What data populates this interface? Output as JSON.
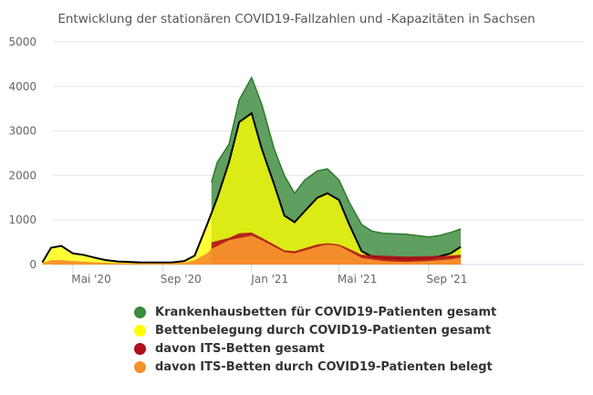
{
  "chart_data": {
    "type": "area",
    "title": "Entwicklung der stationären COVID19-Fallzahlen und -Kapazitäten in Sachsen",
    "xlabel": "",
    "ylabel": "",
    "ylim": [
      0,
      5000
    ],
    "yticks": [
      "0",
      "1000",
      "2000",
      "3000",
      "4000",
      "5000"
    ],
    "xticks": [
      {
        "date": "2020-05-01",
        "label": "Mai '20"
      },
      {
        "date": "2020-09-01",
        "label": "Sep '20"
      },
      {
        "date": "2021-01-01",
        "label": "Jan '21"
      },
      {
        "date": "2021-05-01",
        "label": "Mai '21"
      },
      {
        "date": "2021-09-01",
        "label": "Sep '21"
      }
    ],
    "grid": true,
    "legend_position": "bottom",
    "series": [
      {
        "name": "Krankenhausbetten für COVID19-Patienten gesamt",
        "color": "#3c8a3c",
        "points": [
          [
            "2020-11-07",
            1850
          ],
          [
            "2020-11-15",
            2300
          ],
          [
            "2020-12-01",
            2700
          ],
          [
            "2020-12-15",
            3700
          ],
          [
            "2021-01-01",
            4200
          ],
          [
            "2021-01-15",
            3600
          ],
          [
            "2021-02-01",
            2600
          ],
          [
            "2021-02-15",
            2000
          ],
          [
            "2021-03-01",
            1600
          ],
          [
            "2021-03-15",
            1900
          ],
          [
            "2021-04-01",
            2100
          ],
          [
            "2021-04-15",
            2150
          ],
          [
            "2021-05-01",
            1900
          ],
          [
            "2021-05-15",
            1400
          ],
          [
            "2021-06-01",
            900
          ],
          [
            "2021-06-15",
            750
          ],
          [
            "2021-07-01",
            700
          ],
          [
            "2021-08-01",
            680
          ],
          [
            "2021-09-01",
            620
          ],
          [
            "2021-09-15",
            650
          ],
          [
            "2021-10-01",
            720
          ],
          [
            "2021-10-15",
            800
          ]
        ]
      },
      {
        "name": "Bettenbelegung durch COVID19-Patienten gesamt",
        "color": "#ffff00",
        "points": [
          [
            "2020-03-20",
            50
          ],
          [
            "2020-04-01",
            380
          ],
          [
            "2020-04-15",
            420
          ],
          [
            "2020-05-01",
            250
          ],
          [
            "2020-05-15",
            220
          ],
          [
            "2020-06-01",
            150
          ],
          [
            "2020-06-15",
            100
          ],
          [
            "2020-07-01",
            70
          ],
          [
            "2020-08-01",
            50
          ],
          [
            "2020-09-01",
            45
          ],
          [
            "2020-09-15",
            50
          ],
          [
            "2020-10-01",
            80
          ],
          [
            "2020-10-15",
            200
          ],
          [
            "2020-11-01",
            900
          ],
          [
            "2020-11-15",
            1500
          ],
          [
            "2020-12-01",
            2300
          ],
          [
            "2020-12-15",
            3200
          ],
          [
            "2021-01-01",
            3400
          ],
          [
            "2021-01-15",
            2600
          ],
          [
            "2021-02-01",
            1800
          ],
          [
            "2021-02-15",
            1100
          ],
          [
            "2021-03-01",
            950
          ],
          [
            "2021-03-15",
            1200
          ],
          [
            "2021-04-01",
            1500
          ],
          [
            "2021-04-15",
            1600
          ],
          [
            "2021-05-01",
            1450
          ],
          [
            "2021-05-15",
            900
          ],
          [
            "2021-06-01",
            300
          ],
          [
            "2021-06-15",
            180
          ],
          [
            "2021-07-01",
            150
          ],
          [
            "2021-08-01",
            130
          ],
          [
            "2021-09-01",
            140
          ],
          [
            "2021-09-15",
            180
          ],
          [
            "2021-10-01",
            250
          ],
          [
            "2021-10-15",
            400
          ]
        ]
      },
      {
        "name": "davon ITS-Betten gesamt",
        "color": "#b0101a",
        "points": [
          [
            "2020-11-07",
            500
          ],
          [
            "2020-12-01",
            600
          ],
          [
            "2020-12-15",
            700
          ],
          [
            "2021-01-01",
            720
          ],
          [
            "2021-01-15",
            600
          ],
          [
            "2021-02-01",
            450
          ],
          [
            "2021-02-15",
            320
          ],
          [
            "2021-03-01",
            300
          ],
          [
            "2021-04-01",
            450
          ],
          [
            "2021-04-15",
            480
          ],
          [
            "2021-05-01",
            450
          ],
          [
            "2021-05-15",
            350
          ],
          [
            "2021-06-01",
            220
          ],
          [
            "2021-07-01",
            200
          ],
          [
            "2021-08-01",
            180
          ],
          [
            "2021-09-01",
            190
          ],
          [
            "2021-10-01",
            200
          ],
          [
            "2021-10-15",
            220
          ]
        ]
      },
      {
        "name": "davon ITS-Betten durch COVID19-Patienten belegt",
        "color": "#f7912b",
        "points": [
          [
            "2020-03-20",
            30
          ],
          [
            "2020-04-01",
            100
          ],
          [
            "2020-04-15",
            100
          ],
          [
            "2020-05-01",
            80
          ],
          [
            "2020-06-01",
            50
          ],
          [
            "2020-07-01",
            30
          ],
          [
            "2020-09-01",
            25
          ],
          [
            "2020-10-01",
            40
          ],
          [
            "2020-10-15",
            100
          ],
          [
            "2020-11-01",
            250
          ],
          [
            "2020-11-07",
            350
          ],
          [
            "2020-12-01",
            550
          ],
          [
            "2021-01-01",
            650
          ],
          [
            "2021-01-15",
            550
          ],
          [
            "2021-02-01",
            400
          ],
          [
            "2021-02-15",
            280
          ],
          [
            "2021-03-01",
            250
          ],
          [
            "2021-04-01",
            400
          ],
          [
            "2021-04-15",
            450
          ],
          [
            "2021-05-01",
            420
          ],
          [
            "2021-05-15",
            300
          ],
          [
            "2021-06-01",
            150
          ],
          [
            "2021-07-01",
            80
          ],
          [
            "2021-08-01",
            60
          ],
          [
            "2021-09-01",
            80
          ],
          [
            "2021-10-01",
            120
          ],
          [
            "2021-10-15",
            160
          ]
        ]
      }
    ]
  }
}
